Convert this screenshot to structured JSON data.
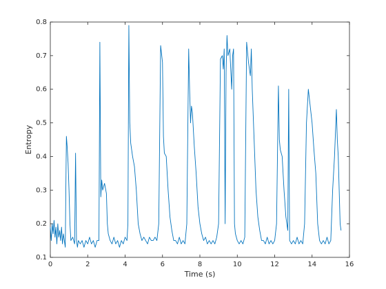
{
  "chart_data": {
    "type": "line",
    "xlabel": "Time (s)",
    "ylabel": "Entropy",
    "x": [
      0,
      0.05,
      0.1,
      0.15,
      0.2,
      0.25,
      0.3,
      0.35,
      0.4,
      0.45,
      0.5,
      0.55,
      0.6,
      0.65,
      0.7,
      0.75,
      0.8,
      0.83,
      0.86,
      0.9,
      0.95,
      1.0,
      1.05,
      1.1,
      1.2,
      1.3,
      1.35,
      1.4,
      1.45,
      1.5,
      1.6,
      1.7,
      1.8,
      1.9,
      2.0,
      2.1,
      2.2,
      2.3,
      2.4,
      2.5,
      2.6,
      2.65,
      2.7,
      2.75,
      2.8,
      2.9,
      3.0,
      3.05,
      3.1,
      3.2,
      3.3,
      3.4,
      3.5,
      3.6,
      3.7,
      3.8,
      3.9,
      4.0,
      4.1,
      4.15,
      4.2,
      4.25,
      4.3,
      4.4,
      4.5,
      4.6,
      4.7,
      4.8,
      4.9,
      5.0,
      5.1,
      5.2,
      5.3,
      5.4,
      5.5,
      5.6,
      5.7,
      5.8,
      5.9,
      6.0,
      6.05,
      6.1,
      6.2,
      6.3,
      6.4,
      6.5,
      6.6,
      6.7,
      6.8,
      6.9,
      7.0,
      7.1,
      7.2,
      7.3,
      7.4,
      7.45,
      7.5,
      7.55,
      7.6,
      7.7,
      7.8,
      7.9,
      8.0,
      8.1,
      8.2,
      8.3,
      8.4,
      8.5,
      8.6,
      8.7,
      8.8,
      8.9,
      9.0,
      9.1,
      9.2,
      9.25,
      9.3,
      9.35,
      9.4,
      9.45,
      9.5,
      9.6,
      9.7,
      9.75,
      9.8,
      9.85,
      9.9,
      10.0,
      10.1,
      10.2,
      10.3,
      10.4,
      10.5,
      10.6,
      10.7,
      10.75,
      10.8,
      10.9,
      11.0,
      11.1,
      11.2,
      11.3,
      11.4,
      11.5,
      11.6,
      11.7,
      11.8,
      11.9,
      12.0,
      12.1,
      12.2,
      12.25,
      12.3,
      12.4,
      12.5,
      12.6,
      12.7,
      12.75,
      12.8,
      12.9,
      13.0,
      13.1,
      13.2,
      13.3,
      13.4,
      13.5,
      13.6,
      13.7,
      13.8,
      13.9,
      14.0,
      14.1,
      14.2,
      14.3,
      14.4,
      14.5,
      14.6,
      14.7,
      14.8,
      14.9,
      15.0,
      15.1,
      15.2,
      15.3,
      15.35,
      15.4,
      15.45,
      15.5,
      15.55
    ],
    "series": [
      {
        "name": "Entropy",
        "color": "#0072bd",
        "values": [
          0.19,
          0.15,
          0.2,
          0.17,
          0.21,
          0.16,
          0.19,
          0.14,
          0.2,
          0.16,
          0.18,
          0.15,
          0.19,
          0.14,
          0.17,
          0.15,
          0.13,
          0.3,
          0.46,
          0.43,
          0.38,
          0.3,
          0.2,
          0.15,
          0.16,
          0.14,
          0.41,
          0.15,
          0.13,
          0.15,
          0.14,
          0.15,
          0.13,
          0.15,
          0.14,
          0.16,
          0.14,
          0.15,
          0.13,
          0.15,
          0.15,
          0.74,
          0.28,
          0.33,
          0.3,
          0.32,
          0.29,
          0.2,
          0.17,
          0.15,
          0.14,
          0.16,
          0.14,
          0.15,
          0.13,
          0.15,
          0.14,
          0.16,
          0.15,
          0.2,
          0.79,
          0.5,
          0.44,
          0.4,
          0.37,
          0.3,
          0.2,
          0.17,
          0.15,
          0.16,
          0.15,
          0.14,
          0.16,
          0.15,
          0.15,
          0.16,
          0.15,
          0.2,
          0.73,
          0.68,
          0.46,
          0.41,
          0.4,
          0.3,
          0.22,
          0.18,
          0.15,
          0.15,
          0.14,
          0.16,
          0.14,
          0.15,
          0.14,
          0.2,
          0.72,
          0.6,
          0.5,
          0.55,
          0.53,
          0.43,
          0.35,
          0.25,
          0.2,
          0.17,
          0.15,
          0.16,
          0.14,
          0.15,
          0.14,
          0.15,
          0.14,
          0.16,
          0.2,
          0.69,
          0.7,
          0.66,
          0.72,
          0.2,
          0.65,
          0.76,
          0.7,
          0.72,
          0.6,
          0.7,
          0.72,
          0.2,
          0.17,
          0.15,
          0.14,
          0.15,
          0.14,
          0.16,
          0.74,
          0.68,
          0.64,
          0.72,
          0.6,
          0.45,
          0.3,
          0.22,
          0.18,
          0.15,
          0.15,
          0.14,
          0.16,
          0.14,
          0.15,
          0.14,
          0.15,
          0.2,
          0.61,
          0.45,
          0.42,
          0.4,
          0.3,
          0.22,
          0.18,
          0.6,
          0.15,
          0.14,
          0.15,
          0.14,
          0.16,
          0.14,
          0.15,
          0.14,
          0.2,
          0.5,
          0.6,
          0.55,
          0.5,
          0.42,
          0.35,
          0.2,
          0.15,
          0.14,
          0.15,
          0.14,
          0.16,
          0.14,
          0.15,
          0.3,
          0.4,
          0.54,
          0.45,
          0.4,
          0.3,
          0.2,
          0.18
        ]
      }
    ],
    "xlim": [
      0,
      16
    ],
    "xticks": [
      0,
      2,
      4,
      6,
      8,
      10,
      12,
      14,
      16
    ],
    "ylim": [
      0.1,
      0.8
    ],
    "yticks": [
      0.1,
      0.2,
      0.3,
      0.4,
      0.5,
      0.6,
      0.7,
      0.8
    ],
    "grid": false
  }
}
